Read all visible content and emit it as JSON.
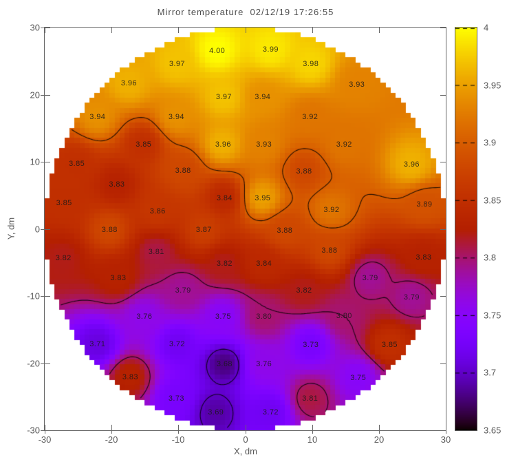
{
  "title": "Mirror temperature  02/12/19 17:26:55",
  "axes": {
    "xlabel": "X, dm",
    "ylabel": "Y, dm",
    "xlim": [
      -30,
      30
    ],
    "ylim": [
      -30,
      30
    ],
    "xticks": [
      {
        "v": -30,
        "label": "-30"
      },
      {
        "v": -20,
        "label": "-20"
      },
      {
        "v": -10,
        "label": "-10"
      },
      {
        "v": 0,
        "label": "0"
      },
      {
        "v": 10,
        "label": "10"
      },
      {
        "v": 20,
        "label": "20"
      },
      {
        "v": 30,
        "label": "30"
      }
    ],
    "yticks": [
      {
        "v": -30,
        "label": "-30"
      },
      {
        "v": -20,
        "label": "-20"
      },
      {
        "v": -10,
        "label": "-10"
      },
      {
        "v": 0,
        "label": "0"
      },
      {
        "v": 10,
        "label": "10"
      },
      {
        "v": 20,
        "label": "20"
      },
      {
        "v": 30,
        "label": "30"
      }
    ]
  },
  "colorbar": {
    "min": 3.65,
    "max": 4.0,
    "colormap": "gnuplot-black-purple-red-yellow",
    "color_samples": {
      "3.65": "#000000",
      "3.7": "#6001c7",
      "3.75": "#8806f9",
      "3.8": "#a6146e",
      "3.85": "#bf2300",
      "3.9": "#d75d00",
      "3.95": "#eca100",
      "4.0": "#ffff00"
    },
    "ticks": [
      {
        "v": 4.0,
        "label": "4"
      },
      {
        "v": 3.95,
        "label": "3.95"
      },
      {
        "v": 3.9,
        "label": "3.9"
      },
      {
        "v": 3.85,
        "label": "3.85"
      },
      {
        "v": 3.8,
        "label": "3.8"
      },
      {
        "v": 3.75,
        "label": "3.75"
      },
      {
        "v": 3.7,
        "label": "3.7"
      },
      {
        "v": 3.65,
        "label": "3.65"
      }
    ]
  },
  "chart_data": {
    "type": "heatmap",
    "title": "Mirror temperature  02/12/19 17:26:55",
    "xlabel": "X, dm",
    "ylabel": "Y, dm",
    "xlim": [
      -30,
      30
    ],
    "ylim": [
      -30,
      30
    ],
    "zrange": [
      3.65,
      4.0
    ],
    "contour_levels": [
      3.7,
      3.8,
      3.9
    ],
    "domain_mask": "circle of radius 30 dm centered at origin",
    "points": [
      {
        "x": -4.2,
        "y": 26.5,
        "v": 4.0
      },
      {
        "x": 3.8,
        "y": 26.7,
        "v": 3.99
      },
      {
        "x": -10.2,
        "y": 24.6,
        "v": 3.97
      },
      {
        "x": 9.8,
        "y": 24.6,
        "v": 3.98
      },
      {
        "x": -17.4,
        "y": 21.7,
        "v": 3.96
      },
      {
        "x": 16.7,
        "y": 21.5,
        "v": 3.93
      },
      {
        "x": -3.2,
        "y": 19.6,
        "v": 3.97
      },
      {
        "x": 2.6,
        "y": 19.6,
        "v": 3.94
      },
      {
        "x": -22.1,
        "y": 16.7,
        "v": 3.94
      },
      {
        "x": -10.3,
        "y": 16.7,
        "v": 3.94
      },
      {
        "x": 9.7,
        "y": 16.7,
        "v": 3.92
      },
      {
        "x": -15.2,
        "y": 12.6,
        "v": 3.85
      },
      {
        "x": -3.3,
        "y": 12.6,
        "v": 3.96
      },
      {
        "x": 2.8,
        "y": 12.6,
        "v": 3.93
      },
      {
        "x": 14.8,
        "y": 12.6,
        "v": 3.92
      },
      {
        "x": -25.2,
        "y": 9.7,
        "v": 3.85
      },
      {
        "x": -9.3,
        "y": 8.7,
        "v": 3.88
      },
      {
        "x": 8.8,
        "y": 8.6,
        "v": 3.88
      },
      {
        "x": 24.9,
        "y": 9.6,
        "v": 3.96
      },
      {
        "x": -19.2,
        "y": 6.6,
        "v": 3.83
      },
      {
        "x": -3.1,
        "y": 4.6,
        "v": 3.84
      },
      {
        "x": 2.6,
        "y": 4.6,
        "v": 3.95
      },
      {
        "x": -27.1,
        "y": 3.8,
        "v": 3.85
      },
      {
        "x": -13.1,
        "y": 2.6,
        "v": 3.86
      },
      {
        "x": 12.9,
        "y": 2.8,
        "v": 3.92
      },
      {
        "x": 26.8,
        "y": 3.6,
        "v": 3.89
      },
      {
        "x": -20.3,
        "y": -0.2,
        "v": 3.88
      },
      {
        "x": -6.2,
        "y": -0.2,
        "v": 3.87
      },
      {
        "x": 5.9,
        "y": -0.3,
        "v": 3.88
      },
      {
        "x": -13.3,
        "y": -3.4,
        "v": 3.81
      },
      {
        "x": 12.6,
        "y": -3.2,
        "v": 3.88
      },
      {
        "x": -27.2,
        "y": -4.4,
        "v": 3.82
      },
      {
        "x": -3.1,
        "y": -5.2,
        "v": 3.82
      },
      {
        "x": 2.8,
        "y": -5.2,
        "v": 3.84
      },
      {
        "x": 26.7,
        "y": -4.3,
        "v": 3.83
      },
      {
        "x": -19.0,
        "y": -7.3,
        "v": 3.83
      },
      {
        "x": 18.7,
        "y": -7.3,
        "v": 3.79
      },
      {
        "x": -9.3,
        "y": -9.2,
        "v": 3.79
      },
      {
        "x": 8.8,
        "y": -9.2,
        "v": 3.82
      },
      {
        "x": 24.9,
        "y": -10.2,
        "v": 3.79
      },
      {
        "x": -15.1,
        "y": -13.1,
        "v": 3.76
      },
      {
        "x": -3.3,
        "y": -13.1,
        "v": 3.75
      },
      {
        "x": 2.8,
        "y": -13.1,
        "v": 3.8
      },
      {
        "x": 14.8,
        "y": -13.0,
        "v": 3.8
      },
      {
        "x": -22.1,
        "y": -17.2,
        "v": 3.71
      },
      {
        "x": -10.2,
        "y": -17.2,
        "v": 3.72
      },
      {
        "x": 9.8,
        "y": -17.3,
        "v": 3.73
      },
      {
        "x": 21.6,
        "y": -17.3,
        "v": 3.85
      },
      {
        "x": -3.1,
        "y": -20.2,
        "v": 3.68
      },
      {
        "x": 2.8,
        "y": -20.2,
        "v": 3.76
      },
      {
        "x": -17.2,
        "y": -22.1,
        "v": 3.83
      },
      {
        "x": 16.9,
        "y": -22.2,
        "v": 3.75
      },
      {
        "x": -10.3,
        "y": -25.3,
        "v": 3.73
      },
      {
        "x": 9.7,
        "y": -25.3,
        "v": 3.81
      },
      {
        "x": -4.4,
        "y": -27.3,
        "v": 3.69
      },
      {
        "x": 3.8,
        "y": -27.3,
        "v": 3.72
      }
    ]
  }
}
